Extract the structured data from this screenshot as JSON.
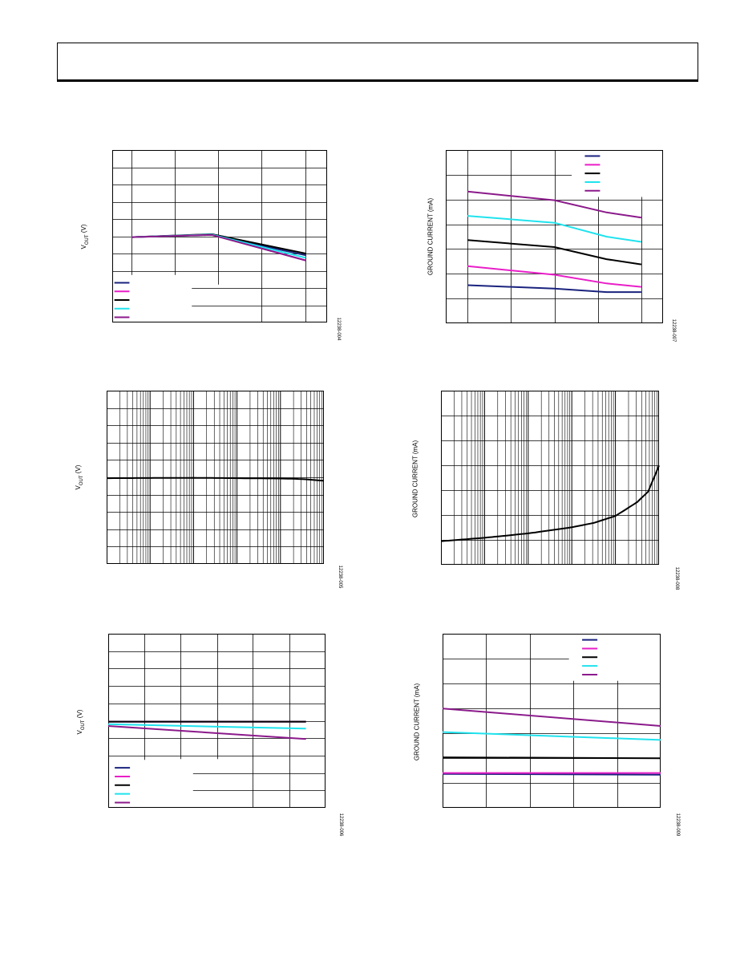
{
  "page": {
    "colors": {
      "navy": "#1a237e",
      "magenta": "#e91ec8",
      "black": "#000000",
      "cyan": "#1fe3ee",
      "purple": "#8b1a8b",
      "grid": "#000000"
    }
  },
  "chart_data": [
    {
      "type": "line",
      "ylabel_main": "V",
      "ylabel_sub": "OUT",
      "ylabel_unit": " (V)",
      "fig_id": "12238-004",
      "log_x": false,
      "grid": true,
      "legend_placement": "bottom-left",
      "series": [
        {
          "color": "navy",
          "x": [
            0,
            0.46,
            1.0
          ],
          "y": [
            0.505,
            0.492,
            0.61
          ]
        },
        {
          "color": "magenta",
          "x": [
            0,
            0.46,
            1.0
          ],
          "y": [
            0.505,
            0.49,
            0.64
          ]
        },
        {
          "color": "black",
          "x": [
            0,
            0.46,
            1.0
          ],
          "y": [
            0.505,
            0.488,
            0.6
          ]
        },
        {
          "color": "cyan",
          "x": [
            0,
            0.46,
            1.0
          ],
          "y": [
            0.505,
            0.49,
            0.625
          ]
        },
        {
          "color": "purple",
          "x": [
            0,
            0.46,
            1.0
          ],
          "y": [
            0.505,
            0.492,
            0.64
          ]
        }
      ]
    },
    {
      "type": "line",
      "ylabel": "GROUND CURRENT (mA)",
      "fig_id": "12238-007",
      "log_x": false,
      "grid": true,
      "legend_placement": "top-right",
      "series": [
        {
          "color": "navy",
          "x": [
            0,
            0.5,
            0.8,
            1.0
          ],
          "y": [
            0.78,
            0.8,
            0.82,
            0.82
          ]
        },
        {
          "color": "magenta",
          "x": [
            0,
            0.5,
            0.8,
            1.0
          ],
          "y": [
            0.67,
            0.72,
            0.77,
            0.79
          ]
        },
        {
          "color": "black",
          "x": [
            0,
            0.5,
            0.8,
            1.0
          ],
          "y": [
            0.52,
            0.56,
            0.63,
            0.66
          ]
        },
        {
          "color": "cyan",
          "x": [
            0,
            0.5,
            0.8,
            1.0
          ],
          "y": [
            0.38,
            0.42,
            0.5,
            0.53
          ]
        },
        {
          "color": "purple",
          "x": [
            0,
            0.5,
            0.8,
            1.0
          ],
          "y": [
            0.24,
            0.29,
            0.36,
            0.39
          ]
        }
      ]
    },
    {
      "type": "line",
      "ylabel_main": "V",
      "ylabel_sub": "OUT",
      "ylabel_unit": " (V)",
      "fig_id": "12238-005",
      "log_x": true,
      "decades": 5,
      "grid": true,
      "series": [
        {
          "color": "black",
          "x": [
            0,
            0.4,
            0.8,
            0.9,
            1.0
          ],
          "y": [
            0.505,
            0.503,
            0.507,
            0.51,
            0.52
          ]
        }
      ]
    },
    {
      "type": "line",
      "ylabel": "GROUND CURRENT (mA)",
      "fig_id": "12238-008",
      "log_x": true,
      "decades": 5,
      "grid": true,
      "series": [
        {
          "color": "black",
          "x": [
            0,
            0.2,
            0.4,
            0.6,
            0.7,
            0.8,
            0.9,
            0.95,
            1.0
          ],
          "y": [
            0.865,
            0.845,
            0.82,
            0.785,
            0.76,
            0.72,
            0.64,
            0.58,
            0.43
          ]
        }
      ]
    },
    {
      "type": "line",
      "ylabel_main": "V",
      "ylabel_sub": "OUT",
      "ylabel_unit": " (V)",
      "fig_id": "12238-006",
      "log_x": false,
      "grid": true,
      "legend_placement": "bottom-left",
      "series": [
        {
          "color": "navy",
          "x": [
            0,
            1.0
          ],
          "y": [
            0.505,
            0.505
          ]
        },
        {
          "color": "magenta",
          "x": [
            0,
            1.0
          ],
          "y": [
            0.505,
            0.505
          ]
        },
        {
          "color": "black",
          "x": [
            0,
            1.0
          ],
          "y": [
            0.505,
            0.505
          ]
        },
        {
          "color": "cyan",
          "x": [
            0,
            1.0
          ],
          "y": [
            0.52,
            0.545
          ]
        },
        {
          "color": "purple",
          "x": [
            0,
            1.0
          ],
          "y": [
            0.53,
            0.605
          ]
        }
      ]
    },
    {
      "type": "line",
      "ylabel": "GROUND CURRENT (mA)",
      "fig_id": "12238-009",
      "log_x": false,
      "grid": true,
      "legend_placement": "top-right",
      "series": [
        {
          "color": "navy",
          "x": [
            0,
            1.0
          ],
          "y": [
            0.805,
            0.81
          ]
        },
        {
          "color": "magenta",
          "x": [
            0,
            1.0
          ],
          "y": [
            0.8,
            0.8
          ]
        },
        {
          "color": "black",
          "x": [
            0,
            1.0
          ],
          "y": [
            0.71,
            0.715
          ]
        },
        {
          "color": "cyan",
          "x": [
            0,
            1.0
          ],
          "y": [
            0.565,
            0.61
          ]
        },
        {
          "color": "purple",
          "x": [
            0,
            1.0
          ],
          "y": [
            0.43,
            0.53
          ]
        }
      ]
    }
  ]
}
